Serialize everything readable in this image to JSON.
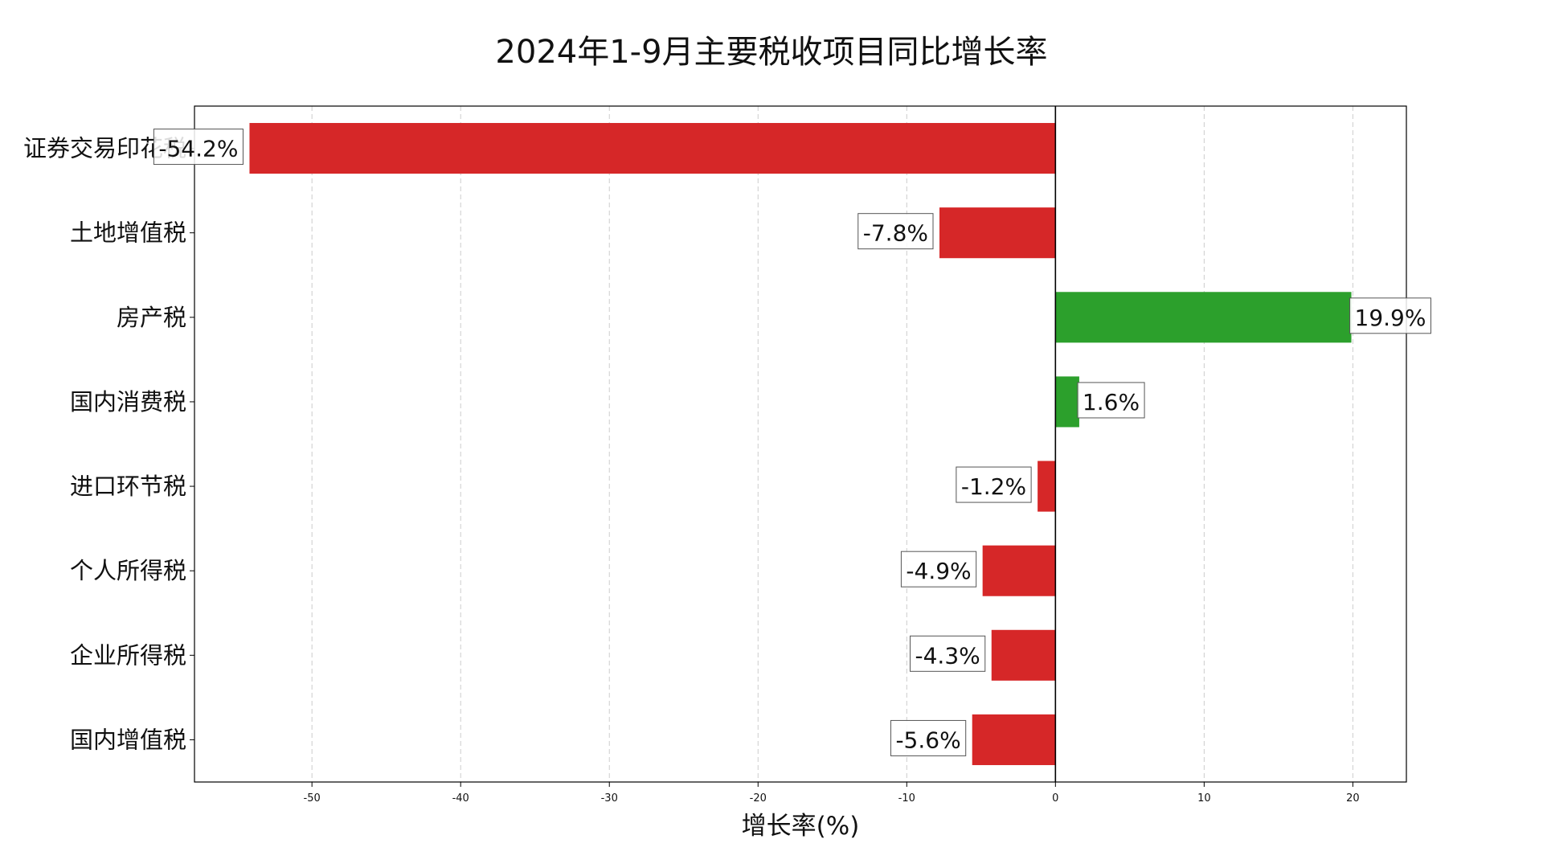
{
  "chart_data": {
    "type": "bar",
    "orientation": "horizontal",
    "title": "2024年1-9月主要税收项目同比增长率",
    "xlabel": "增长率(%)",
    "ylabel": "",
    "xlim": [
      -57.9,
      23.6
    ],
    "xticks": [
      -50,
      -40,
      -30,
      -20,
      -10,
      0,
      10,
      20
    ],
    "grid": "x-dashed",
    "categories": [
      "证券交易印花税",
      "土地增值税",
      "房产税",
      "国内消费税",
      "进口环节税",
      "个人所得税",
      "企业所得税",
      "国内增值税"
    ],
    "values": [
      -54.2,
      -7.8,
      19.9,
      1.6,
      -1.2,
      -4.9,
      -4.3,
      -5.6
    ],
    "labels": [
      "-54.2%",
      "-7.8%",
      "19.9%",
      "1.6%",
      "-1.2%",
      "-4.9%",
      "-4.3%",
      "-5.6%"
    ],
    "colors": {
      "negative": "#d62728",
      "positive": "#2ca02c"
    }
  }
}
